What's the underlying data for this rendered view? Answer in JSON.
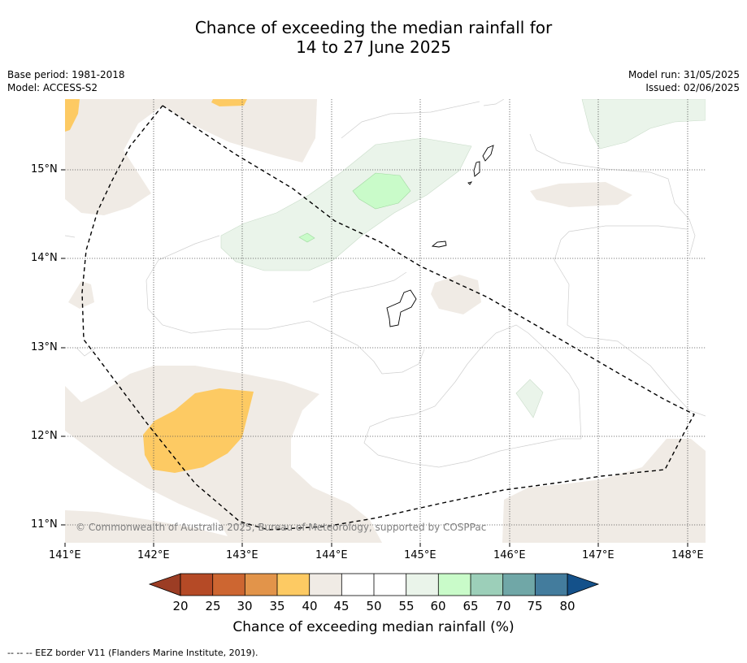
{
  "title": {
    "line1": "Chance of exceeding the median rainfall for",
    "line2": "14 to 27 June 2025"
  },
  "meta": {
    "base_period": "Base period: 1981-2018",
    "model": "Model: ACCESS-S2",
    "model_run": "Model run: 31/05/2025",
    "issued": "Issued: 02/06/2025"
  },
  "map": {
    "lon_ticks": [
      "141°E",
      "142°E",
      "143°E",
      "144°E",
      "145°E",
      "146°E",
      "147°E",
      "148°E"
    ],
    "lat_ticks": [
      "15°N",
      "14°N",
      "13°N",
      "12°N",
      "11°N"
    ],
    "lon_range": [
      141,
      148.2
    ],
    "lat_range": [
      10.8,
      15.8
    ],
    "copyright": "© Commonwealth of Australia 2025, Bureau of Meteorology, supported by COSPPac"
  },
  "colorbar": {
    "title": "Chance of exceeding median rainfall (%)",
    "ticks": [
      "20",
      "25",
      "30",
      "35",
      "40",
      "45",
      "50",
      "55",
      "60",
      "65",
      "70",
      "75",
      "80"
    ],
    "colors": [
      "#b54a26",
      "#cd6631",
      "#e2944a",
      "#fdca63",
      "#f0ebe5",
      "#ffffff",
      "#ffffff",
      "#eaf4ea",
      "#c9fbc9",
      "#9ccfb9",
      "#70a7a7",
      "#437c9d"
    ],
    "under_color": "#9c3d24",
    "over_color": "#14518a"
  },
  "footnote": "--  --  -- EEZ border V11 (Flanders Marine Institute, 2019)."
}
